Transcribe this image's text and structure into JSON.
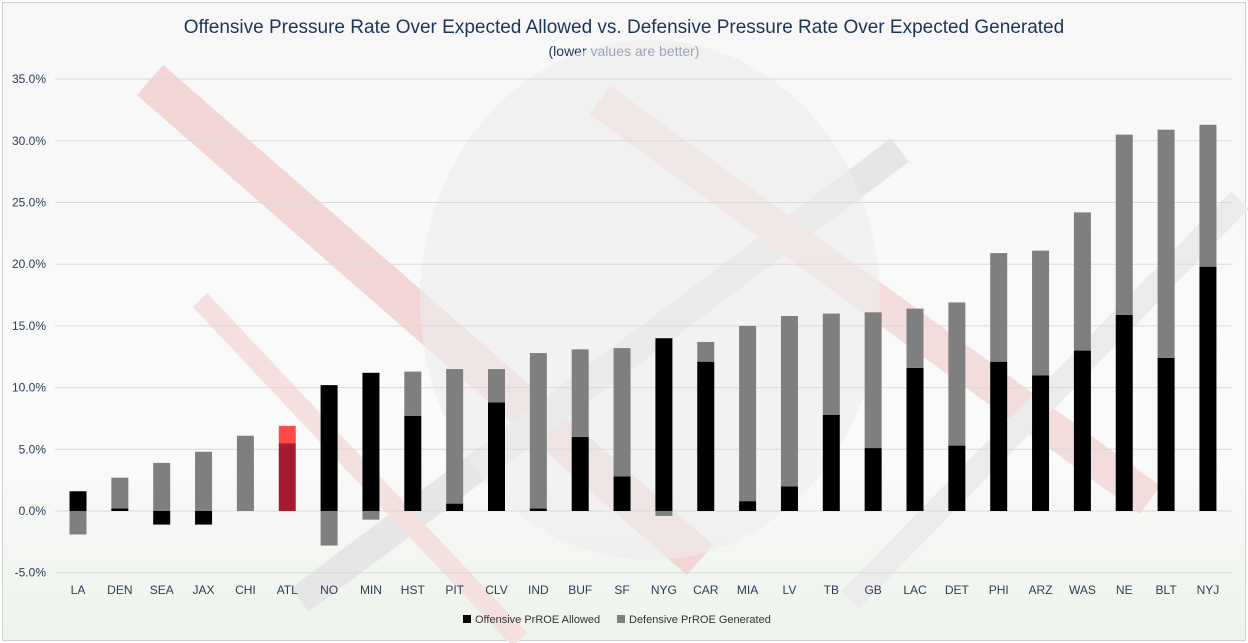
{
  "chart_data": {
    "type": "bar",
    "stacked": true,
    "title": "Offensive Pressure Rate Over Expected Allowed vs. Defensive Pressure Rate Over Expected Generated",
    "subtitle": "(lower values are better)",
    "xlabel": "",
    "ylabel": "",
    "ylim": [
      -5,
      35
    ],
    "yticks": [
      "-5.0%",
      "0.0%",
      "5.0%",
      "10.0%",
      "15.0%",
      "20.0%",
      "25.0%",
      "30.0%",
      "35.0%"
    ],
    "grid": true,
    "legend_position": "bottom",
    "categories": [
      "LA",
      "DEN",
      "SEA",
      "JAX",
      "CHI",
      "ATL",
      "NO",
      "MIN",
      "HST",
      "PIT",
      "CLV",
      "IND",
      "BUF",
      "SF",
      "NYG",
      "CAR",
      "MIA",
      "LV",
      "TB",
      "GB",
      "LAC",
      "DET",
      "PHI",
      "ARZ",
      "WAS",
      "NE",
      "BLT",
      "NYJ"
    ],
    "series": [
      {
        "name": "Offensive PrROE Allowed",
        "color": "#000000",
        "values": [
          1.6,
          0.2,
          -1.1,
          -1.1,
          0.0,
          5.5,
          10.2,
          11.2,
          7.7,
          0.6,
          8.8,
          0.2,
          6.0,
          2.8,
          14.0,
          12.1,
          0.8,
          2.0,
          7.8,
          5.1,
          11.6,
          5.3,
          12.1,
          11.0,
          13.0,
          15.9,
          12.4,
          19.8
        ]
      },
      {
        "name": "Defensive PrROE Generated",
        "color": "#7f7f7f",
        "values": [
          -1.9,
          2.5,
          3.9,
          4.8,
          6.1,
          1.4,
          -2.8,
          -0.7,
          3.6,
          10.9,
          2.7,
          12.6,
          7.1,
          10.4,
          -0.4,
          1.6,
          14.2,
          13.8,
          8.2,
          11.0,
          4.8,
          11.6,
          8.8,
          10.1,
          11.2,
          14.6,
          18.5,
          11.5
        ]
      }
    ],
    "highlight": {
      "category": "ATL",
      "offense_color": "#a51c30",
      "defense_color": "#ff4a4a"
    }
  }
}
